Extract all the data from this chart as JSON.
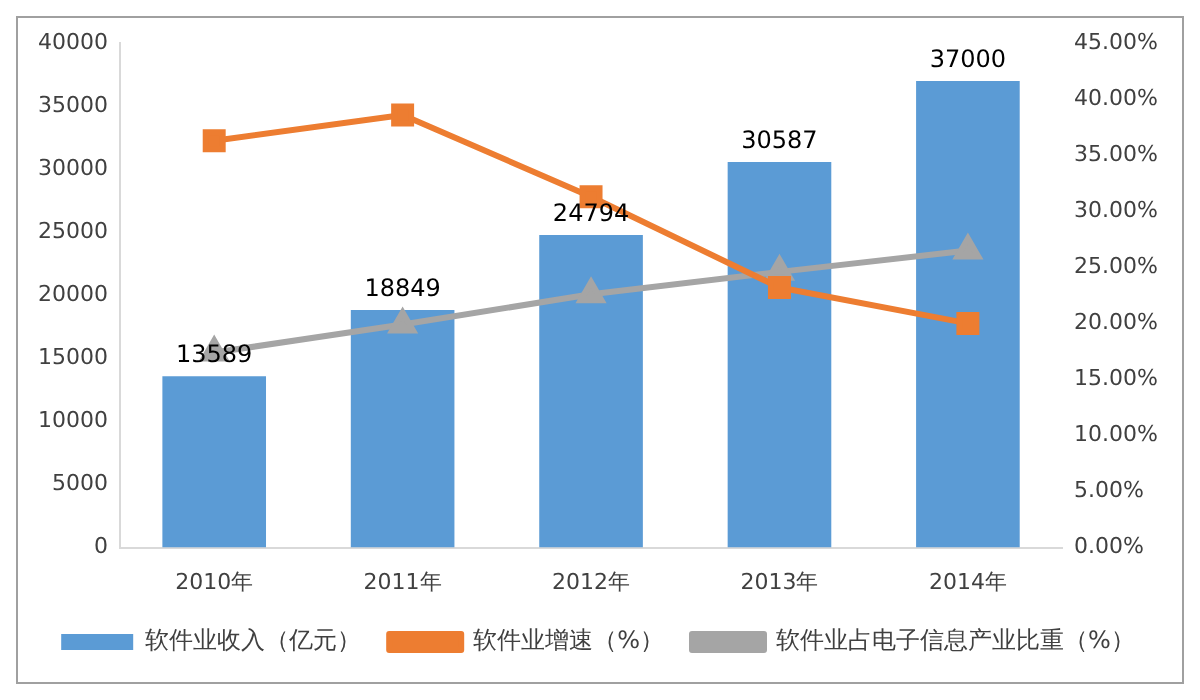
{
  "chart_data": {
    "type": "bar",
    "categories": [
      "2010年",
      "2011年",
      "2012年",
      "2013年",
      "2014年"
    ],
    "series": [
      {
        "name": "软件业收入（亿元）",
        "color": "#5b9bd5",
        "values": [
          13589,
          18849,
          24794,
          30587,
          37000
        ],
        "value_labels": [
          "13589",
          "18849",
          "24794",
          "30587",
          "37000"
        ]
      },
      {
        "name": "软件业增速（%）",
        "type": "line",
        "axis": "y2",
        "marker": "square",
        "color": "#ed7d31",
        "values": [
          36.3,
          38.6,
          31.3,
          23.2,
          20.0
        ]
      },
      {
        "name": "软件业占电子信息产业比重（%）",
        "type": "line",
        "axis": "y2",
        "marker": "triangle",
        "color": "#a5a5a5",
        "values": [
          17.4,
          19.9,
          22.6,
          24.6,
          26.5
        ]
      }
    ],
    "ylim": [
      0,
      40000
    ],
    "yticks": [
      0,
      5000,
      10000,
      15000,
      20000,
      25000,
      30000,
      35000,
      40000
    ],
    "y2lim": [
      0,
      45
    ],
    "y2ticks": [
      {
        "value": 0,
        "label": "0.00%"
      },
      {
        "value": 5,
        "label": "5.00%"
      },
      {
        "value": 10,
        "label": "10.00%"
      },
      {
        "value": 15,
        "label": "15.00%"
      },
      {
        "value": 20,
        "label": "20.00%"
      },
      {
        "value": 25,
        "label": "25.00%"
      },
      {
        "value": 30,
        "label": "30.00%"
      },
      {
        "value": 35,
        "label": "35.00%"
      },
      {
        "value": 40,
        "label": "40.00%"
      },
      {
        "value": 45,
        "label": "45.00%"
      }
    ],
    "grid": false,
    "legend": "bottom"
  }
}
